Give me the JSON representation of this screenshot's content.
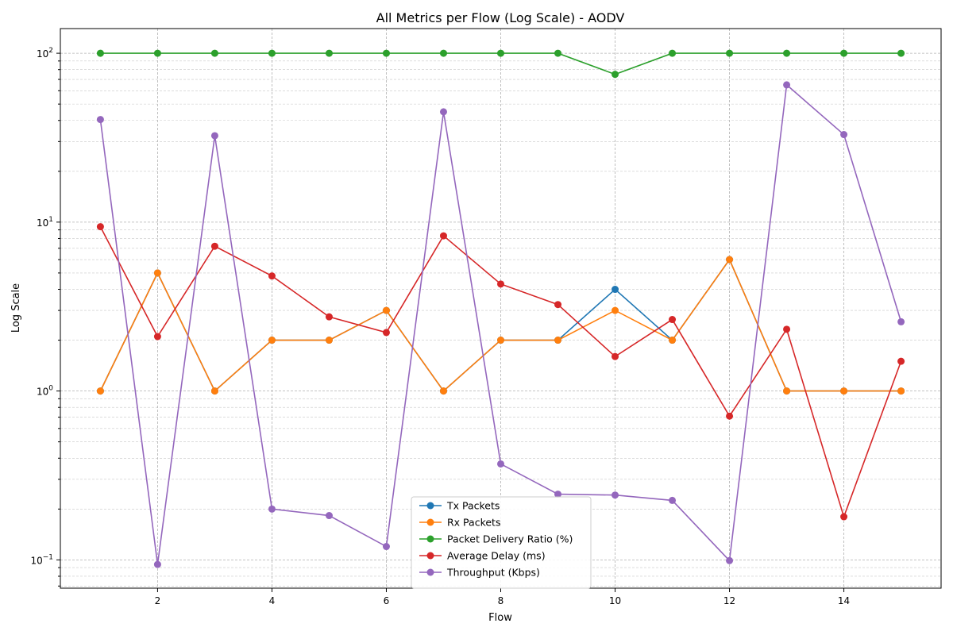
{
  "chart_data": {
    "type": "line",
    "title": "All Metrics per Flow (Log Scale) - AODV",
    "xlabel": "Flow",
    "ylabel": "Log Scale",
    "yscale": "log",
    "xlim": [
      0.3,
      15.7
    ],
    "ylim": [
      0.068,
      140
    ],
    "x_ticks": [
      2,
      4,
      6,
      8,
      10,
      12,
      14
    ],
    "x_tick_labels": [
      "2",
      "4",
      "6",
      "8",
      "10",
      "12",
      "14"
    ],
    "y_ticks": [
      0.1,
      1,
      10,
      100
    ],
    "y_tick_labels": [
      {
        "base": "10",
        "exp": "−1"
      },
      {
        "base": "10",
        "exp": "0"
      },
      {
        "base": "10",
        "exp": "1"
      },
      {
        "base": "10",
        "exp": "2"
      }
    ],
    "grid": true,
    "legend_position": "lower-center",
    "x": [
      1,
      2,
      3,
      4,
      5,
      6,
      7,
      8,
      9,
      10,
      11,
      12,
      13,
      14,
      15
    ],
    "series": [
      {
        "name": "Tx Packets",
        "color": "#1f77b4",
        "values": [
          1,
          5,
          1,
          2,
          2,
          3,
          1,
          2,
          2,
          4,
          2,
          6,
          1,
          1,
          1
        ]
      },
      {
        "name": "Rx Packets",
        "color": "#ff7f0e",
        "values": [
          1,
          5,
          1,
          2,
          2,
          3,
          1,
          2,
          2,
          3,
          2,
          6,
          1,
          1,
          1
        ]
      },
      {
        "name": "Packet Delivery Ratio (%)",
        "color": "#2ca02c",
        "values": [
          100,
          100,
          100,
          100,
          100,
          100,
          100,
          100,
          100,
          75,
          100,
          100,
          100,
          100,
          100
        ]
      },
      {
        "name": "Average Delay (ms)",
        "color": "#d62728",
        "values": [
          9.4,
          2.1,
          7.2,
          4.8,
          2.75,
          2.22,
          8.3,
          4.3,
          3.25,
          1.6,
          2.65,
          0.71,
          2.32,
          0.18,
          1.5
        ]
      },
      {
        "name": "Throughput (Kbps)",
        "color": "#9467bd",
        "values": [
          40.5,
          0.094,
          32.5,
          0.2,
          0.183,
          0.12,
          45,
          0.37,
          0.245,
          0.242,
          0.225,
          0.099,
          65,
          33,
          2.57
        ]
      }
    ]
  }
}
